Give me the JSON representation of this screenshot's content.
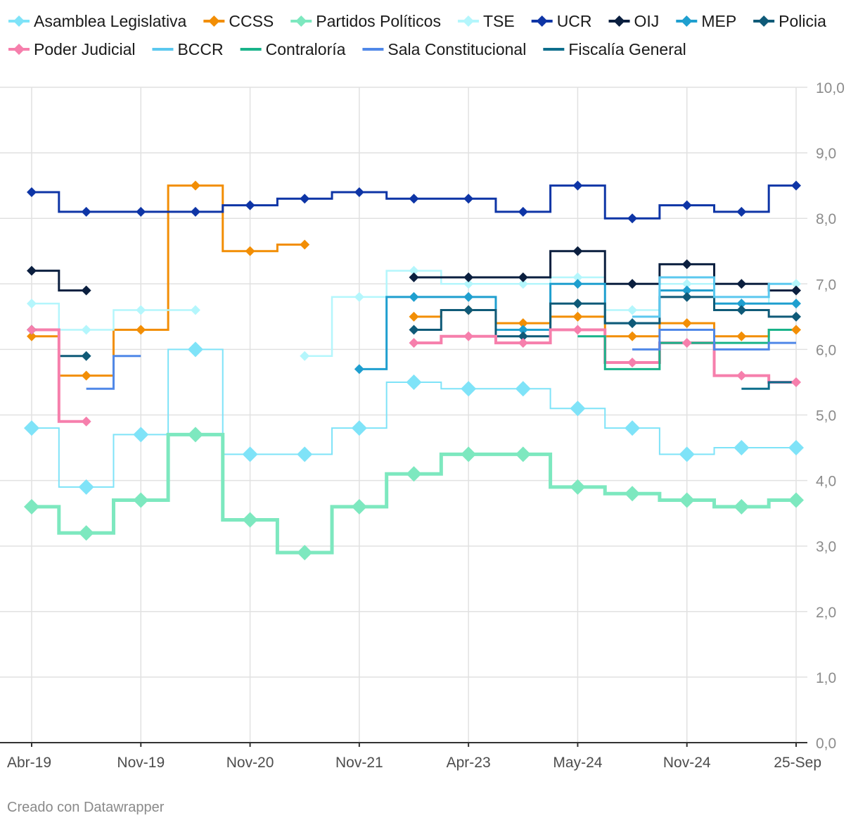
{
  "credit": "Creado con Datawrapper",
  "chart_data": {
    "type": "line",
    "interpolation": "step",
    "title": "",
    "xlabel": "",
    "ylabel": "",
    "ylim": [
      0,
      10
    ],
    "yticks": [
      "0,0",
      "1,0",
      "2,0",
      "3,0",
      "4,0",
      "5,0",
      "6,0",
      "7,0",
      "8,0",
      "9,0",
      "10,0"
    ],
    "ytick_values": [
      0,
      1,
      2,
      3,
      4,
      5,
      6,
      7,
      8,
      9,
      10
    ],
    "y_axis_side": "right",
    "xticks": [
      "Abr-19",
      "Nov-19",
      "Nov-20",
      "Nov-21",
      "Apr-23",
      "May-24",
      "Nov-24",
      "25-Sep"
    ],
    "xtick_positions": [
      0,
      2,
      4,
      6,
      8,
      10,
      12,
      14
    ],
    "x_range": [
      0,
      14
    ],
    "grid": true,
    "legend_position": "top",
    "series": [
      {
        "name": "Asamblea Legislativa",
        "color": "#7fe3f8",
        "width": 2,
        "marker": "diamond",
        "marker_size": 11,
        "points": [
          [
            0,
            4.8
          ],
          [
            1,
            3.9
          ],
          [
            2,
            4.7
          ],
          [
            3,
            6.0
          ],
          [
            4,
            4.4
          ],
          [
            5,
            4.4
          ],
          [
            6,
            4.8
          ],
          [
            7,
            5.5
          ],
          [
            8,
            5.4
          ],
          [
            9,
            5.4
          ],
          [
            10,
            5.1
          ],
          [
            11,
            4.8
          ],
          [
            12,
            4.4
          ],
          [
            13,
            4.5
          ],
          [
            14,
            4.5
          ]
        ]
      },
      {
        "name": "CCSS",
        "color": "#f28e05",
        "width": 3,
        "marker": "diamond",
        "marker_size": 7,
        "points": [
          [
            0,
            6.2
          ],
          [
            1,
            5.6
          ],
          [
            2,
            6.3
          ],
          [
            3,
            8.5
          ],
          [
            4,
            7.5
          ],
          [
            5,
            7.6
          ],
          [
            null,
            null
          ],
          [
            7,
            6.5
          ],
          [
            8,
            6.6
          ],
          [
            9,
            6.4
          ],
          [
            10,
            6.5
          ],
          [
            11,
            6.2
          ],
          [
            12,
            6.4
          ],
          [
            13,
            6.2
          ],
          [
            14,
            6.3
          ]
        ]
      },
      {
        "name": "Partidos Políticos",
        "color": "#7de8bf",
        "width": 5,
        "marker": "diamond",
        "marker_size": 11,
        "points": [
          [
            0,
            3.6
          ],
          [
            1,
            3.2
          ],
          [
            2,
            3.7
          ],
          [
            3,
            4.7
          ],
          [
            4,
            3.4
          ],
          [
            5,
            2.9
          ],
          [
            6,
            3.6
          ],
          [
            7,
            4.1
          ],
          [
            8,
            4.4
          ],
          [
            9,
            4.4
          ],
          [
            10,
            3.9
          ],
          [
            11,
            3.8
          ],
          [
            12,
            3.7
          ],
          [
            13,
            3.6
          ],
          [
            14,
            3.7
          ]
        ]
      },
      {
        "name": "TSE",
        "color": "#b4f6fc",
        "width": 2.5,
        "marker": "diamond",
        "marker_size": 7,
        "points": [
          [
            0,
            6.7
          ],
          [
            1,
            6.3
          ],
          [
            2,
            6.6
          ],
          [
            3,
            6.6
          ],
          [
            null,
            null
          ],
          [
            5,
            5.9
          ],
          [
            6,
            6.8
          ],
          [
            7,
            7.2
          ],
          [
            8,
            7.0
          ],
          [
            9,
            7.0
          ],
          [
            10,
            7.1
          ],
          [
            11,
            6.6
          ],
          [
            12,
            7.0
          ],
          [
            13,
            6.7
          ],
          [
            14,
            7.0
          ]
        ]
      },
      {
        "name": "UCR",
        "color": "#0e35a6",
        "width": 3,
        "marker": "diamond",
        "marker_size": 7,
        "points": [
          [
            0,
            8.4
          ],
          [
            1,
            8.1
          ],
          [
            2,
            8.1
          ],
          [
            3,
            8.1
          ],
          [
            4,
            8.2
          ],
          [
            5,
            8.3
          ],
          [
            6,
            8.4
          ],
          [
            7,
            8.3
          ],
          [
            8,
            8.3
          ],
          [
            9,
            8.1
          ],
          [
            10,
            8.5
          ],
          [
            11,
            8.0
          ],
          [
            12,
            8.2
          ],
          [
            13,
            8.1
          ],
          [
            14,
            8.5
          ]
        ]
      },
      {
        "name": "OIJ",
        "color": "#0b1f3f",
        "width": 3,
        "marker": "diamond",
        "marker_size": 7,
        "points": [
          [
            0,
            7.2
          ],
          [
            1,
            6.9
          ],
          [
            null,
            null
          ],
          [
            7,
            7.1
          ],
          [
            8,
            7.1
          ],
          [
            9,
            7.1
          ],
          [
            10,
            7.5
          ],
          [
            11,
            7.0
          ],
          [
            12,
            7.3
          ],
          [
            13,
            7.0
          ],
          [
            14,
            6.9
          ]
        ]
      },
      {
        "name": "MEP",
        "color": "#1f9fcf",
        "width": 3,
        "marker": "diamond",
        "marker_size": 7,
        "points": [
          [
            6,
            5.7
          ],
          [
            7,
            6.8
          ],
          [
            8,
            6.8
          ],
          [
            9,
            6.3
          ],
          [
            10,
            7.0
          ],
          [
            11,
            6.4
          ],
          [
            12,
            6.9
          ],
          [
            13,
            6.7
          ],
          [
            14,
            6.7
          ]
        ]
      },
      {
        "name": "Policia",
        "color": "#0f5a78",
        "width": 3,
        "marker": "diamond",
        "marker_size": 7,
        "points": [
          [
            0,
            6.3
          ],
          [
            1,
            5.9
          ],
          [
            null,
            null
          ],
          [
            7,
            6.3
          ],
          [
            8,
            6.6
          ],
          [
            9,
            6.2
          ],
          [
            10,
            6.7
          ],
          [
            11,
            6.4
          ],
          [
            12,
            6.8
          ],
          [
            13,
            6.6
          ],
          [
            14,
            6.5
          ]
        ]
      },
      {
        "name": "Poder Judicial",
        "color": "#f67fac",
        "width": 4,
        "marker": "diamond",
        "marker_size": 7,
        "points": [
          [
            0,
            6.3
          ],
          [
            1,
            4.9
          ],
          [
            null,
            null
          ],
          [
            7,
            6.1
          ],
          [
            8,
            6.2
          ],
          [
            9,
            6.1
          ],
          [
            10,
            6.3
          ],
          [
            11,
            5.8
          ],
          [
            12,
            6.1
          ],
          [
            13,
            5.6
          ],
          [
            14,
            5.5
          ]
        ]
      },
      {
        "name": "BCCR",
        "color": "#5bc8ef",
        "width": 3,
        "marker": "none",
        "marker_size": 0,
        "points": [
          [
            11,
            6.5
          ],
          [
            12,
            7.1
          ],
          [
            13,
            6.8
          ],
          [
            14,
            7.0
          ]
        ]
      },
      {
        "name": "Contraloría",
        "color": "#19b38a",
        "width": 3,
        "marker": "none",
        "marker_size": 0,
        "points": [
          [
            10,
            6.2
          ],
          [
            11,
            5.7
          ],
          [
            12,
            6.1
          ],
          [
            13,
            6.1
          ],
          [
            14,
            6.3
          ]
        ]
      },
      {
        "name": "Sala Constitucional",
        "color": "#5088e8",
        "width": 3,
        "marker": "none",
        "marker_size": 0,
        "points": [
          [
            1,
            5.4
          ],
          [
            2,
            5.9
          ],
          [
            null,
            null
          ],
          [
            11,
            6.0
          ],
          [
            12,
            6.3
          ],
          [
            13,
            6.0
          ],
          [
            14,
            6.1
          ]
        ]
      },
      {
        "name": "Fiscalía General",
        "color": "#0d6e8c",
        "width": 3,
        "marker": "none",
        "marker_size": 0,
        "points": [
          [
            13,
            5.4
          ],
          [
            14,
            5.5
          ]
        ]
      }
    ]
  }
}
